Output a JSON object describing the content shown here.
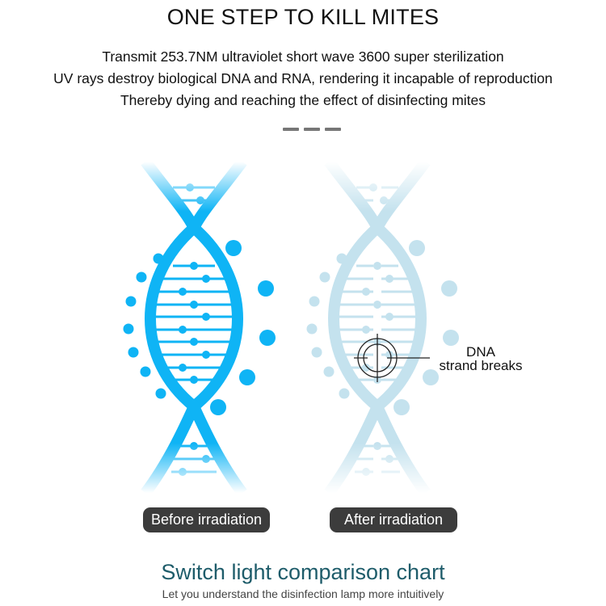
{
  "header": {
    "title": "ONE STEP TO KILL MITES",
    "lines": [
      "Transmit 253.7NM ultraviolet short wave 3600 super sterilization",
      "UV rays destroy biological DNA and RNA, rendering it incapable of reproduction",
      "Thereby dying and reaching the effect of disinfecting mites"
    ]
  },
  "comparison": {
    "before_label": "Before irradiation",
    "after_label": "After irradiation",
    "annotation": {
      "line1": "DNA",
      "line2": "strand breaks"
    },
    "colors": {
      "before": "#0fb4f5",
      "after": "#c4e2ee",
      "pill": "#3c3c3c"
    }
  },
  "footer": {
    "title": "Switch light comparison chart",
    "subtitle": "Let you understand the disinfection lamp more intuitively"
  }
}
